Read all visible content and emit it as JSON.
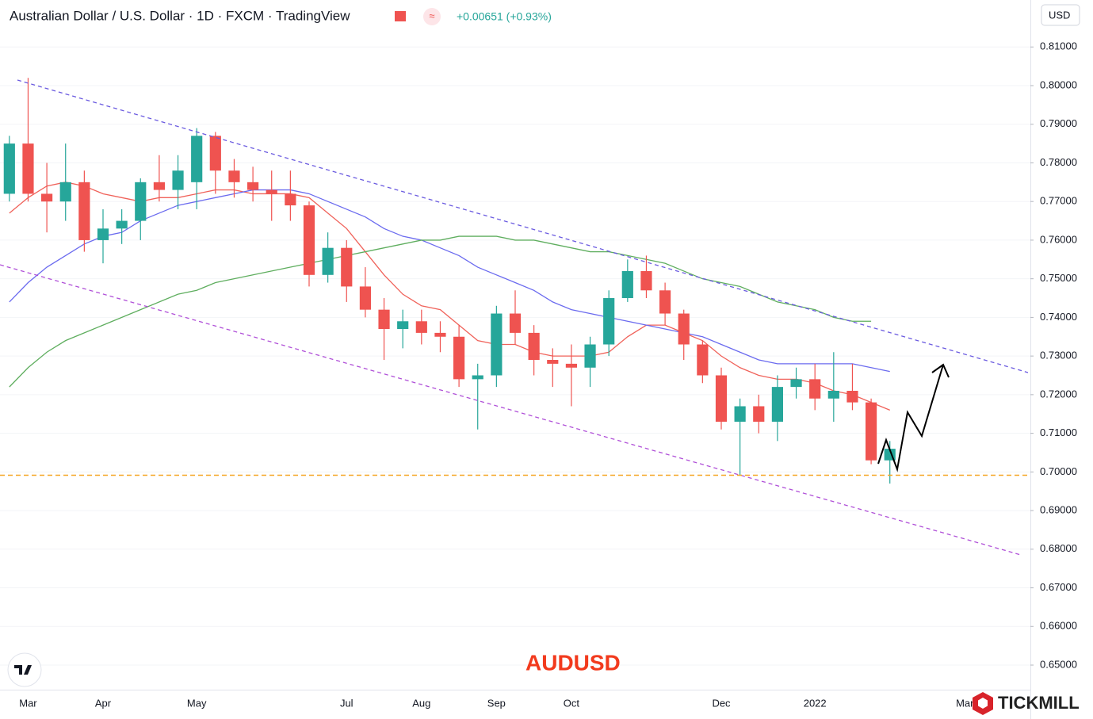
{
  "chart_data": {
    "type": "candlestick",
    "title": "Australian Dollar / U.S. Dollar · 1D · FXCM · TradingView",
    "change": "+0.00651 (+0.93%)",
    "annotation": "AUDUSD",
    "brand": "TICKMILL",
    "currency": "USD",
    "categories": [
      null,
      "Mar",
      null,
      null,
      null,
      "Apr",
      null,
      null,
      null,
      null,
      "May",
      null,
      null,
      null,
      null,
      null,
      null,
      null,
      "Jul",
      null,
      null,
      null,
      "Aug",
      null,
      null,
      null,
      "Sep",
      null,
      null,
      null,
      "Oct",
      null,
      null,
      null,
      null,
      null,
      null,
      null,
      "Dec",
      null,
      null,
      null,
      null,
      "2022",
      null,
      null,
      null,
      null,
      null,
      null,
      null,
      "Mar",
      null,
      null,
      null
    ],
    "ohlc": {
      "up_color": "#26a69a",
      "down_color": "#ef5350",
      "open": [
        0.772,
        0.785,
        0.772,
        0.77,
        0.775,
        0.76,
        0.763,
        0.765,
        0.775,
        0.773,
        0.775,
        0.787,
        0.778,
        0.775,
        0.773,
        0.772,
        0.769,
        0.751,
        0.758,
        0.748,
        0.742,
        0.737,
        0.739,
        0.736,
        0.735,
        0.724,
        0.725,
        0.741,
        0.736,
        0.729,
        0.728,
        0.727,
        0.733,
        0.745,
        0.752,
        0.747,
        0.741,
        0.733,
        0.725,
        0.713,
        0.717,
        0.713,
        0.722,
        0.724,
        0.719,
        0.721,
        0.718,
        0.703,
        null,
        null,
        null,
        null,
        null,
        null,
        null
      ],
      "high": [
        0.787,
        0.802,
        0.78,
        0.785,
        0.778,
        0.768,
        0.768,
        0.776,
        0.782,
        0.782,
        0.789,
        0.788,
        0.781,
        0.779,
        0.778,
        0.778,
        0.77,
        0.762,
        0.76,
        0.753,
        0.745,
        0.742,
        0.742,
        0.739,
        0.738,
        0.728,
        0.743,
        0.747,
        0.738,
        0.732,
        0.733,
        0.735,
        0.747,
        0.755,
        0.756,
        0.749,
        0.742,
        0.734,
        0.727,
        0.719,
        0.72,
        0.725,
        0.727,
        0.728,
        0.731,
        0.728,
        0.719,
        0.708,
        null,
        null,
        null,
        null,
        null,
        null,
        null
      ],
      "low": [
        0.77,
        0.77,
        0.762,
        0.765,
        0.757,
        0.754,
        0.759,
        0.76,
        0.77,
        0.768,
        0.768,
        0.772,
        0.771,
        0.77,
        0.765,
        0.765,
        0.748,
        0.749,
        0.744,
        0.74,
        0.729,
        0.732,
        0.733,
        0.731,
        0.722,
        0.711,
        0.722,
        0.733,
        0.725,
        0.722,
        0.717,
        0.722,
        0.73,
        0.744,
        0.745,
        0.738,
        0.729,
        0.723,
        0.711,
        0.699,
        0.71,
        0.708,
        0.719,
        0.716,
        0.713,
        0.716,
        0.702,
        0.697,
        null,
        null,
        null,
        null,
        null,
        null,
        null
      ],
      "close": [
        0.785,
        0.772,
        0.77,
        0.775,
        0.76,
        0.763,
        0.765,
        0.775,
        0.773,
        0.778,
        0.787,
        0.778,
        0.775,
        0.773,
        0.772,
        0.769,
        0.751,
        0.758,
        0.748,
        0.742,
        0.737,
        0.739,
        0.736,
        0.735,
        0.724,
        0.725,
        0.741,
        0.736,
        0.729,
        0.728,
        0.727,
        0.733,
        0.745,
        0.752,
        0.747,
        0.741,
        0.733,
        0.725,
        0.713,
        0.717,
        0.713,
        0.722,
        0.724,
        0.719,
        0.721,
        0.718,
        0.703,
        0.706,
        null,
        null,
        null,
        null,
        null,
        null,
        null
      ]
    },
    "series": [
      {
        "color": "#f0625a",
        "values": [
          0.767,
          0.771,
          0.774,
          0.775,
          0.774,
          0.772,
          0.771,
          0.77,
          0.771,
          0.771,
          0.772,
          0.773,
          0.773,
          0.772,
          0.772,
          0.772,
          0.771,
          0.767,
          0.763,
          0.757,
          0.751,
          0.746,
          0.743,
          0.742,
          0.738,
          0.734,
          0.733,
          0.733,
          0.731,
          0.73,
          0.73,
          0.73,
          0.731,
          0.735,
          0.738,
          0.738,
          0.736,
          0.734,
          0.73,
          0.727,
          0.725,
          0.724,
          0.724,
          0.723,
          0.721,
          0.72,
          0.718,
          0.716,
          null,
          null,
          null,
          null,
          null,
          null,
          null
        ]
      },
      {
        "color": "#6b6bef",
        "values": [
          0.744,
          0.749,
          0.753,
          0.756,
          0.759,
          0.761,
          0.762,
          0.765,
          0.767,
          0.769,
          0.77,
          0.771,
          0.772,
          0.773,
          0.773,
          0.773,
          0.772,
          0.77,
          0.768,
          0.766,
          0.763,
          0.761,
          0.76,
          0.758,
          0.756,
          0.753,
          0.751,
          0.749,
          0.747,
          0.744,
          0.742,
          0.741,
          0.74,
          0.739,
          0.738,
          0.737,
          0.736,
          0.735,
          0.733,
          0.731,
          0.729,
          0.728,
          0.728,
          0.728,
          0.728,
          0.728,
          0.727,
          0.726,
          null,
          null,
          null,
          null,
          null,
          null,
          null
        ]
      },
      {
        "color": "#5fae5f",
        "values": [
          0.722,
          0.727,
          0.731,
          0.734,
          0.736,
          0.738,
          0.74,
          0.742,
          0.744,
          0.746,
          0.747,
          0.749,
          0.75,
          0.751,
          0.752,
          0.753,
          0.754,
          0.755,
          0.756,
          0.757,
          0.758,
          0.759,
          0.76,
          0.76,
          0.761,
          0.761,
          0.761,
          0.76,
          0.76,
          0.759,
          0.758,
          0.757,
          0.757,
          0.756,
          0.755,
          0.754,
          0.752,
          0.75,
          0.749,
          0.748,
          0.746,
          0.744,
          0.743,
          0.742,
          0.74,
          0.739,
          0.739,
          null,
          null,
          null,
          null,
          null,
          null,
          null,
          null
        ]
      }
    ],
    "ylim": [
      0.64364,
      0.82216
    ],
    "yticks": [
      {
        "value": 0.65,
        "label": "0.65000"
      },
      {
        "value": 0.66,
        "label": "0.66000"
      },
      {
        "value": 0.67,
        "label": "0.67000"
      },
      {
        "value": 0.68,
        "label": "0.68000"
      },
      {
        "value": 0.69,
        "label": "0.69000"
      },
      {
        "value": 0.7,
        "label": "0.70000"
      },
      {
        "value": 0.71,
        "label": "0.71000"
      },
      {
        "value": 0.72,
        "label": "0.72000"
      },
      {
        "value": 0.73,
        "label": "0.73000"
      },
      {
        "value": 0.74,
        "label": "0.74000"
      },
      {
        "value": 0.75,
        "label": "0.75000"
      },
      {
        "value": 0.76,
        "label": "0.76000"
      },
      {
        "value": 0.77,
        "label": "0.77000"
      },
      {
        "value": 0.78,
        "label": "0.78000"
      },
      {
        "value": 0.79,
        "label": "0.79000"
      },
      {
        "value": 0.8,
        "label": "0.80000"
      },
      {
        "value": 0.81,
        "label": "0.81000"
      }
    ]
  }
}
